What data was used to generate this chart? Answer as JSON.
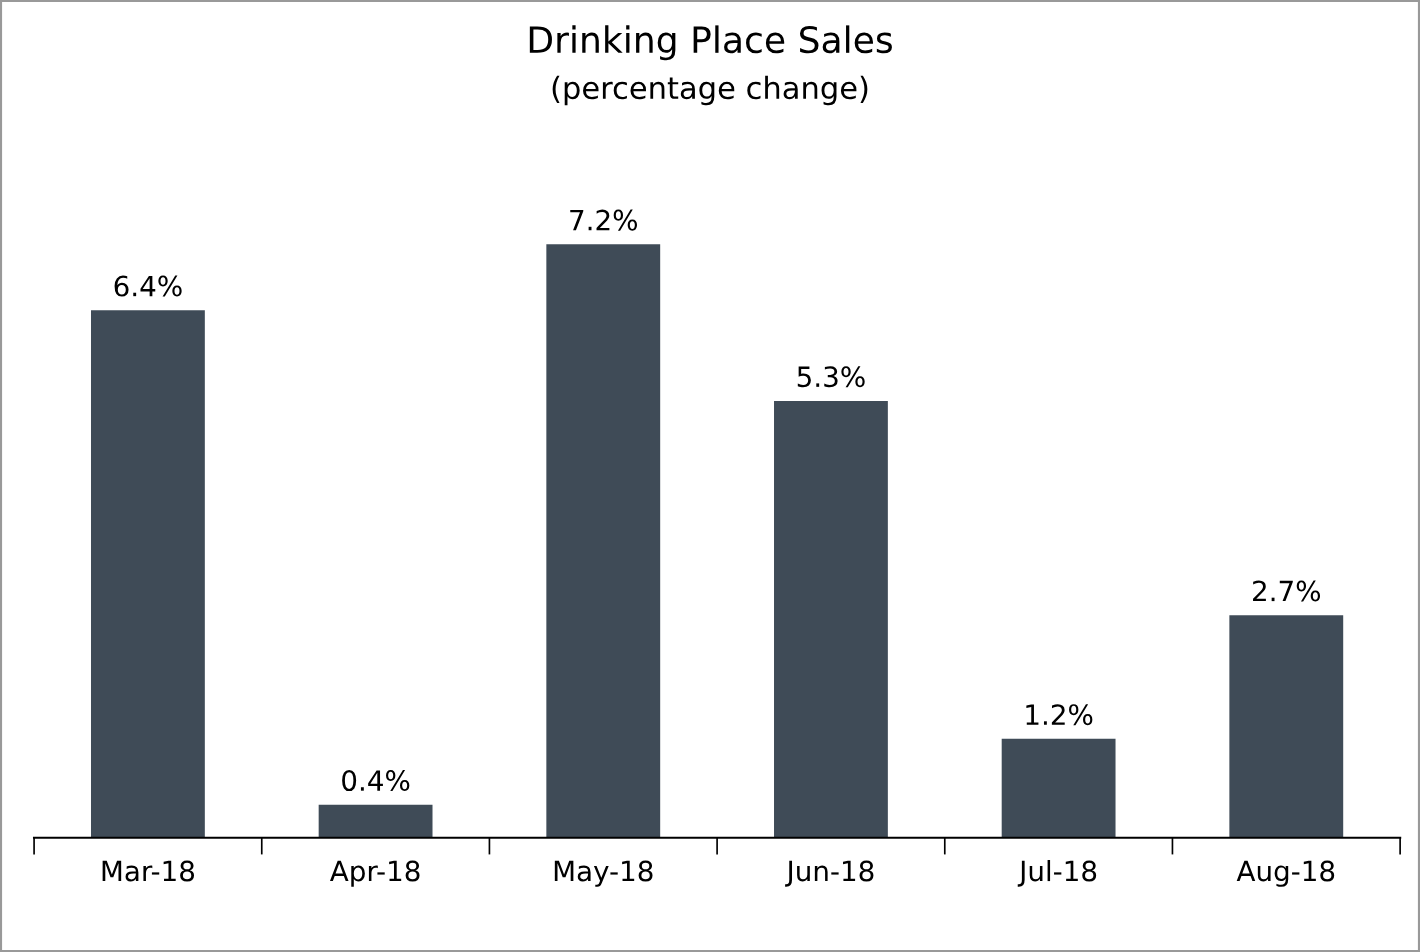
{
  "chart_data": {
    "type": "bar",
    "title": "Drinking Place Sales",
    "subtitle": "(percentage change)",
    "categories": [
      "Mar-18",
      "Apr-18",
      "May-18",
      "Jun-18",
      "Jul-18",
      "Aug-18"
    ],
    "values": [
      6.4,
      0.4,
      7.2,
      5.3,
      1.2,
      2.7
    ],
    "value_labels": [
      "6.4%",
      "0.4%",
      "7.2%",
      "5.3%",
      "1.2%",
      "2.7%"
    ],
    "color": "#3f4b57",
    "grid": false,
    "legend": false,
    "tick_labels": "x"
  }
}
